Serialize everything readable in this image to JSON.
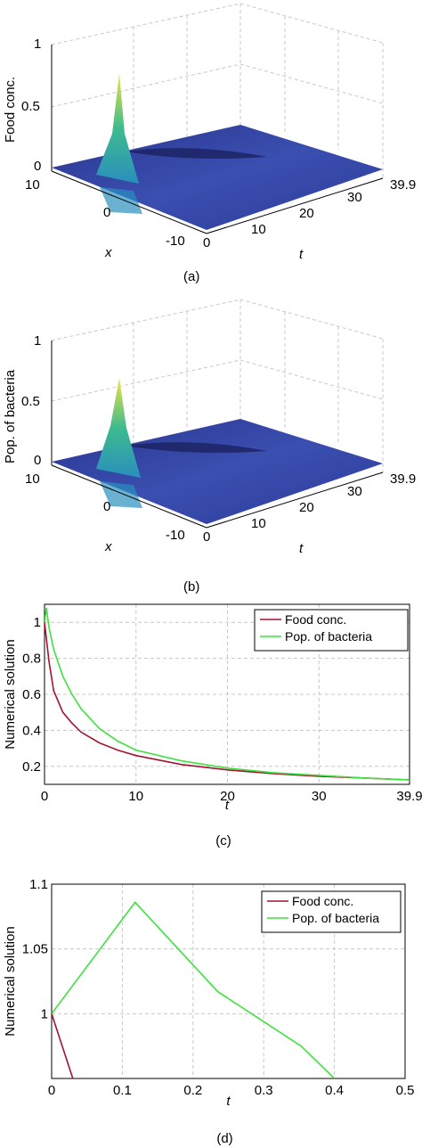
{
  "colors": {
    "food": "#a2142f",
    "bacteria": "#3ee23e",
    "surface_low": "#2e3a9a",
    "surface_mid": "#2a8fbd",
    "surface_high": "#f0e442",
    "grid": "#c8c8c8"
  },
  "panels3d": [
    {
      "caption": "(a)",
      "zlabel": "Food conc.",
      "xlabel": "x",
      "tlabel": "t",
      "z_ticks": [
        "0",
        "0.5",
        "1"
      ],
      "x_ticks": [
        "10",
        "0",
        "-10"
      ],
      "t_ticks": [
        "0",
        "10",
        "20",
        "30",
        "39.9"
      ],
      "peak_value": 0.95
    },
    {
      "caption": "(b)",
      "zlabel": "Pop. of bacteria",
      "xlabel": "x",
      "tlabel": "t",
      "z_ticks": [
        "0",
        "0.5",
        "1"
      ],
      "x_ticks": [
        "10",
        "0",
        "-10"
      ],
      "t_ticks": [
        "0",
        "10",
        "20",
        "30",
        "39.9"
      ],
      "peak_value": 0.85
    }
  ],
  "chart_data": [
    {
      "type": "line",
      "caption": "(c)",
      "xlabel": "t",
      "ylabel": "Numerical solution",
      "xlim": [
        0,
        39.9
      ],
      "ylim": [
        0.1,
        1.1
      ],
      "x_ticks": [
        0,
        10,
        20,
        30,
        39.9
      ],
      "x_tick_labels": [
        "0",
        "10",
        "20",
        "30",
        "39.9"
      ],
      "y_ticks": [
        0.2,
        0.4,
        0.6,
        0.8,
        1
      ],
      "y_tick_labels": [
        "0.2",
        "0.4",
        "0.6",
        "0.8",
        "1"
      ],
      "grid": true,
      "legend": "top-right",
      "series": [
        {
          "name": "Food conc.",
          "color_key": "food",
          "x": [
            0,
            0.5,
            1,
            2,
            3,
            4,
            6,
            8,
            10,
            15,
            20,
            25,
            30,
            35,
            39.9
          ],
          "y": [
            1.0,
            0.78,
            0.62,
            0.5,
            0.44,
            0.39,
            0.33,
            0.29,
            0.26,
            0.21,
            0.18,
            0.16,
            0.145,
            0.135,
            0.125
          ]
        },
        {
          "name": "Pop. of bacteria",
          "color_key": "bacteria",
          "x": [
            0,
            0.2,
            0.5,
            1,
            2,
            3,
            4,
            6,
            8,
            10,
            15,
            20,
            25,
            30,
            35,
            39.9
          ],
          "y": [
            1.0,
            1.08,
            0.97,
            0.85,
            0.7,
            0.6,
            0.52,
            0.41,
            0.34,
            0.29,
            0.23,
            0.19,
            0.165,
            0.15,
            0.135,
            0.125
          ]
        }
      ]
    },
    {
      "type": "line",
      "caption": "(d)",
      "xlabel": "t",
      "ylabel": "Numerical solution",
      "xlim": [
        0,
        0.5
      ],
      "ylim": [
        0.95,
        1.1
      ],
      "x_ticks": [
        0,
        0.1,
        0.2,
        0.3,
        0.4,
        0.5
      ],
      "x_tick_labels": [
        "0",
        "0.1",
        "0.2",
        "0.3",
        "0.4",
        "0.5"
      ],
      "y_ticks": [
        1,
        1.05,
        1.1
      ],
      "y_tick_labels": [
        "1",
        "1.05",
        "1.1"
      ],
      "grid": true,
      "legend": "top-right",
      "series": [
        {
          "name": "Food conc.",
          "color_key": "food",
          "x": [
            0,
            0.03
          ],
          "y": [
            1.0,
            0.95
          ]
        },
        {
          "name": "Pop. of bacteria",
          "color_key": "bacteria",
          "x": [
            0,
            0.118,
            0.235,
            0.353,
            0.4
          ],
          "y": [
            1.0,
            1.086,
            1.017,
            0.975,
            0.95
          ]
        }
      ]
    }
  ]
}
